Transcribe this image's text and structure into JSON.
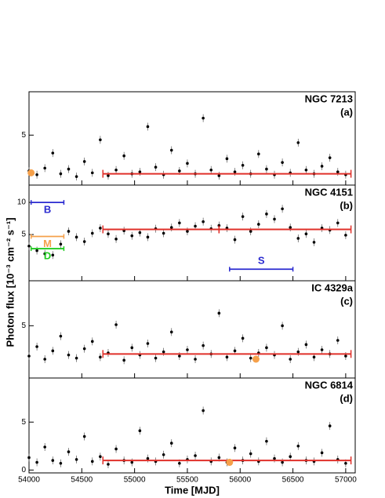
{
  "chart_data": [
    {
      "type": "scatter",
      "title": "NGC 7213",
      "label": "(a)",
      "color": "#000000",
      "x": [
        54000,
        54075,
        54150,
        54225,
        54300,
        54375,
        54450,
        54525,
        54600,
        54675,
        54750,
        54825,
        54900,
        54975,
        55050,
        55125,
        55200,
        55275,
        55350,
        55425,
        55500,
        55575,
        55650,
        55725,
        55800,
        55875,
        55950,
        56025,
        56100,
        56175,
        56250,
        56325,
        56400,
        56475,
        56550,
        56625,
        56700,
        56775,
        56850,
        56925,
        57000
      ],
      "values": [
        1.2,
        0.8,
        1.5,
        3.1,
        0.9,
        1.4,
        0.6,
        2.2,
        1.0,
        4.5,
        0.7,
        1.3,
        2.8,
        0.9,
        1.1,
        5.9,
        1.6,
        0.8,
        3.4,
        1.2,
        2.0,
        0.9,
        6.8,
        1.3,
        0.7,
        2.5,
        1.1,
        1.8,
        0.9,
        3.0,
        1.4,
        0.8,
        2.1,
        1.0,
        4.2,
        1.3,
        0.9,
        1.7,
        2.6,
        1.1,
        0.8
      ],
      "ylim": [
        -0.3,
        9.6
      ],
      "yticks": [
        5
      ],
      "blocks": [
        {
          "start": 54700,
          "end": 57050,
          "value": 0.9
        }
      ],
      "block_color": "#e0302a",
      "markers": [
        {
          "x": 54020,
          "y": 1.0,
          "color": "#f5a04a"
        }
      ]
    },
    {
      "type": "scatter",
      "title": "NGC 4151",
      "label": "(b)",
      "color": "#000000",
      "x": [
        54000,
        54075,
        54150,
        54225,
        54300,
        54375,
        54450,
        54525,
        54600,
        54675,
        54750,
        54825,
        54900,
        54975,
        55050,
        55125,
        55200,
        55275,
        55350,
        55425,
        55500,
        55575,
        55650,
        55725,
        55800,
        55875,
        55950,
        56025,
        56100,
        56175,
        56250,
        56325,
        56400,
        56475,
        56550,
        56625,
        56700,
        56775,
        56850,
        56925,
        57000
      ],
      "values": [
        3.2,
        2.5,
        2.0,
        1.8,
        3.5,
        5.5,
        4.6,
        3.9,
        5.2,
        6.0,
        5.1,
        4.3,
        5.6,
        4.8,
        5.3,
        4.6,
        5.9,
        5.2,
        6.1,
        6.8,
        5.5,
        6.3,
        7.0,
        5.9,
        6.4,
        6.0,
        4.2,
        7.8,
        5.5,
        6.6,
        8.2,
        7.4,
        9.0,
        6.1,
        4.4,
        5.1,
        3.8,
        6.0,
        5.7,
        6.8,
        4.9
      ],
      "ylim": [
        -2.2,
        12.7
      ],
      "yticks": [
        5,
        10
      ],
      "blocks": [
        {
          "start": 54700,
          "end": 55800,
          "value": 5.8
        },
        {
          "start": 55800,
          "end": 57050,
          "value": 5.8
        }
      ],
      "block_color": "#e0302a",
      "intervals": [
        {
          "label": "B",
          "start": 54020,
          "end": 54330,
          "y": 10,
          "color": "#2a2ad0"
        },
        {
          "label": "M",
          "start": 54020,
          "end": 54330,
          "y": 4.7,
          "color": "#f5a04a"
        },
        {
          "label": "D",
          "start": 54020,
          "end": 54330,
          "y": 2.8,
          "color": "#22cc22"
        },
        {
          "label": "S",
          "start": 55900,
          "end": 56500,
          "y": -0.4,
          "color": "#2a2ad0"
        }
      ]
    },
    {
      "type": "scatter",
      "title": "IC 4329a",
      "label": "(c)",
      "color": "#000000",
      "x": [
        54000,
        54075,
        54150,
        54225,
        54300,
        54375,
        54450,
        54525,
        54600,
        54675,
        54750,
        54825,
        54900,
        54975,
        55050,
        55125,
        55200,
        55275,
        55350,
        55425,
        55500,
        55575,
        55650,
        55725,
        55800,
        55875,
        55950,
        56025,
        56100,
        56175,
        56250,
        56325,
        56400,
        56475,
        56550,
        56625,
        56700,
        56775,
        56850,
        56925,
        57000
      ],
      "values": [
        2.1,
        3.0,
        1.8,
        2.6,
        4.0,
        2.2,
        1.9,
        2.8,
        3.5,
        2.0,
        2.4,
        5.1,
        1.7,
        2.9,
        2.2,
        3.3,
        1.9,
        2.5,
        4.4,
        2.1,
        2.7,
        1.8,
        3.1,
        2.3,
        6.2,
        2.0,
        2.6,
        3.8,
        1.9,
        2.4,
        2.9,
        2.2,
        5.0,
        1.8,
        2.5,
        3.2,
        2.0,
        2.7,
        2.3,
        3.6,
        2.1
      ],
      "ylim": [
        0,
        9.3
      ],
      "yticks": [
        5
      ],
      "blocks": [
        {
          "start": 54700,
          "end": 57050,
          "value": 2.3
        }
      ],
      "block_color": "#e0302a",
      "markers": [
        {
          "x": 56150,
          "y": 1.8,
          "color": "#f5a04a"
        }
      ]
    },
    {
      "type": "scatter",
      "title": "NGC 6814",
      "label": "(d)",
      "color": "#000000",
      "x": [
        54000,
        54075,
        54150,
        54225,
        54300,
        54375,
        54450,
        54525,
        54600,
        54675,
        54750,
        54825,
        54900,
        54975,
        55050,
        55125,
        55200,
        55275,
        55350,
        55425,
        55500,
        55575,
        55650,
        55725,
        55800,
        55875,
        55950,
        56025,
        56100,
        56175,
        56250,
        56325,
        56400,
        56475,
        56550,
        56625,
        56700,
        56775,
        56850,
        56925,
        57000
      ],
      "values": [
        1.3,
        0.8,
        2.4,
        1.0,
        0.7,
        1.9,
        1.1,
        3.5,
        0.9,
        1.4,
        0.6,
        2.2,
        1.0,
        0.8,
        4.1,
        1.2,
        0.9,
        1.6,
        2.8,
        0.7,
        1.1,
        1.5,
        6.2,
        0.9,
        1.3,
        0.8,
        2.3,
        1.0,
        1.7,
        0.9,
        3.0,
        1.2,
        0.8,
        1.4,
        2.5,
        1.0,
        0.9,
        1.8,
        4.6,
        1.1,
        0.7
      ],
      "ylim": [
        -0.3,
        9.6
      ],
      "yticks": [
        0,
        5
      ],
      "blocks": [
        {
          "start": 54700,
          "end": 57050,
          "value": 1.0
        }
      ],
      "block_color": "#e0302a",
      "markers": [
        {
          "x": 55900,
          "y": 0.8,
          "color": "#f5a04a"
        }
      ],
      "xlim": [
        54000,
        57090
      ],
      "xticks": [
        54000,
        54500,
        55000,
        55500,
        56000,
        56500,
        57000
      ],
      "xlabel": "Time [MJD]"
    }
  ],
  "figure": {
    "ylabel": "Photon flux [10⁻³ cm⁻² s⁻¹]"
  }
}
